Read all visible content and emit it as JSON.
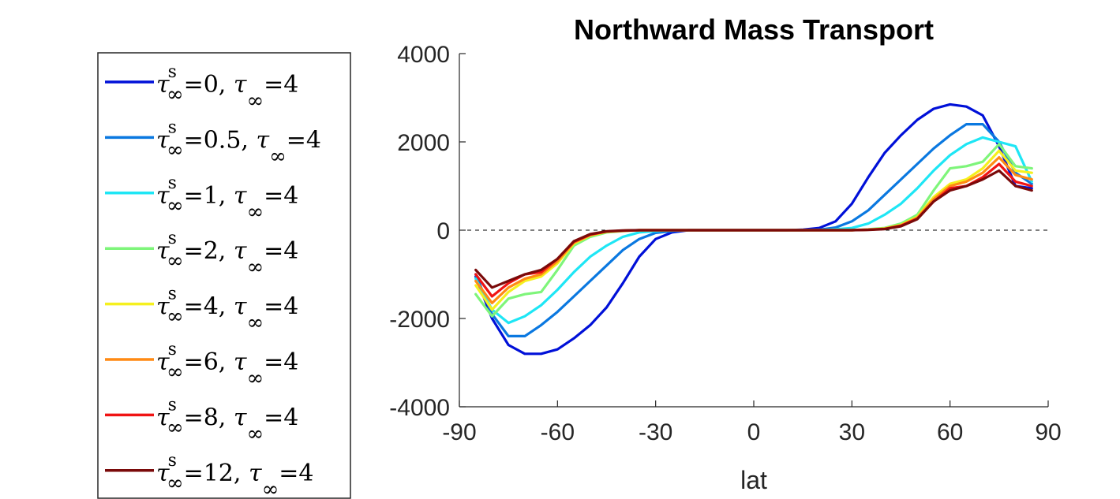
{
  "chart_data": {
    "type": "line",
    "title": "Northward Mass Transport",
    "xlabel": "lat",
    "ylabel": "",
    "xlim": [
      -90,
      90
    ],
    "ylim": [
      -4000,
      4000
    ],
    "xticks": [
      "-90",
      "-60",
      "-30",
      "0",
      "30",
      "60",
      "90"
    ],
    "yticks": [
      "4000",
      "2000",
      "0",
      "-2000",
      "-4000"
    ],
    "grid": false,
    "zero_line": true,
    "legend_position": "outside-left",
    "x": [
      -85,
      -80,
      -75,
      -70,
      -65,
      -60,
      -55,
      -50,
      -45,
      -40,
      -35,
      -30,
      -25,
      -20,
      -15,
      -10,
      -5,
      0,
      5,
      10,
      15,
      20,
      25,
      30,
      35,
      40,
      45,
      50,
      55,
      60,
      65,
      70,
      75,
      80,
      85
    ],
    "series": [
      {
        "color": "#0010d8",
        "legend": {
          "s_sym": "τ",
          "s_sup": "s",
          "s_sub": "∞",
          "s_val": "=0, ",
          "t_sym": "τ",
          "t_sub": "∞",
          "t_val": "=4"
        },
        "values": [
          -1050,
          -2000,
          -2600,
          -2800,
          -2800,
          -2700,
          -2450,
          -2150,
          -1750,
          -1200,
          -600,
          -200,
          -50,
          0,
          0,
          0,
          0,
          0,
          0,
          0,
          10,
          50,
          200,
          600,
          1200,
          1750,
          2150,
          2500,
          2750,
          2850,
          2800,
          2600,
          1900,
          1000,
          950
        ]
      },
      {
        "color": "#0a78e0",
        "legend": {
          "s_sym": "τ",
          "s_sup": "s",
          "s_sub": "∞",
          "s_val": "=0.5, ",
          "t_sym": "τ",
          "t_sub": "∞",
          "t_val": "=4"
        },
        "values": [
          -1000,
          -1900,
          -2400,
          -2400,
          -2150,
          -1850,
          -1500,
          -1150,
          -800,
          -450,
          -200,
          -60,
          -20,
          0,
          0,
          0,
          0,
          0,
          0,
          0,
          0,
          10,
          60,
          200,
          450,
          800,
          1150,
          1500,
          1850,
          2150,
          2400,
          2400,
          2000,
          1300,
          1050
        ]
      },
      {
        "color": "#1ee6f5",
        "legend": {
          "s_sym": "τ",
          "s_sup": "s",
          "s_sub": "∞",
          "s_val": "=1, ",
          "t_sym": "τ",
          "t_sub": "∞",
          "t_val": "=4"
        },
        "values": [
          -1100,
          -1800,
          -2100,
          -1950,
          -1700,
          -1350,
          -950,
          -600,
          -350,
          -150,
          -50,
          -20,
          0,
          0,
          0,
          0,
          0,
          0,
          0,
          0,
          0,
          0,
          20,
          50,
          150,
          350,
          600,
          950,
          1350,
          1700,
          1950,
          2100,
          2000,
          1900,
          1100
        ]
      },
      {
        "color": "#7ef57a",
        "legend": {
          "s_sym": "τ",
          "s_sup": "s",
          "s_sub": "∞",
          "s_val": "=2, ",
          "t_sym": "τ",
          "t_sub": "∞",
          "t_val": "=4"
        },
        "values": [
          -1450,
          -1950,
          -1550,
          -1450,
          -1400,
          -900,
          -350,
          -150,
          -50,
          -20,
          0,
          0,
          0,
          0,
          0,
          0,
          0,
          0,
          0,
          0,
          0,
          0,
          0,
          0,
          20,
          50,
          150,
          350,
          900,
          1400,
          1450,
          1550,
          1950,
          1450,
          1400
        ]
      },
      {
        "color": "#f5f01e",
        "legend": {
          "s_sym": "τ",
          "s_sup": "s",
          "s_sub": "∞",
          "s_val": "=4, ",
          "t_sym": "τ",
          "t_sub": "∞",
          "t_val": "=4"
        },
        "values": [
          -1250,
          -1800,
          -1400,
          -1150,
          -1050,
          -750,
          -300,
          -120,
          -40,
          -10,
          0,
          0,
          0,
          0,
          0,
          0,
          0,
          0,
          0,
          0,
          0,
          0,
          0,
          0,
          10,
          40,
          120,
          300,
          750,
          1050,
          1150,
          1400,
          1800,
          1350,
          1300
        ]
      },
      {
        "color": "#ff8a14",
        "legend": {
          "s_sym": "τ",
          "s_sup": "s",
          "s_sub": "∞",
          "s_val": "=6, ",
          "t_sym": "τ",
          "t_sub": "∞",
          "t_val": "=4"
        },
        "values": [
          -1150,
          -1650,
          -1300,
          -1100,
          -1000,
          -700,
          -280,
          -110,
          -30,
          -10,
          0,
          0,
          0,
          0,
          0,
          0,
          0,
          0,
          0,
          0,
          0,
          0,
          0,
          0,
          10,
          30,
          110,
          280,
          700,
          1000,
          1100,
          1300,
          1650,
          1250,
          1150
        ]
      },
      {
        "color": "#f01414",
        "legend": {
          "s_sym": "τ",
          "s_sup": "s",
          "s_sub": "∞",
          "s_val": "=8, ",
          "t_sym": "τ",
          "t_sub": "∞",
          "t_val": "=4"
        },
        "values": [
          -1000,
          -1500,
          -1200,
          -1000,
          -950,
          -650,
          -260,
          -100,
          -30,
          -10,
          0,
          0,
          0,
          0,
          0,
          0,
          0,
          0,
          0,
          0,
          0,
          0,
          0,
          0,
          10,
          30,
          100,
          260,
          650,
          950,
          1000,
          1200,
          1500,
          1100,
          1000
        ]
      },
      {
        "color": "#7a0a0a",
        "legend": {
          "s_sym": "τ",
          "s_sup": "s",
          "s_sub": "∞",
          "s_val": "=12, ",
          "t_sym": "τ",
          "t_sub": "∞",
          "t_val": "=4"
        },
        "values": [
          -900,
          -1300,
          -1150,
          -1000,
          -900,
          -650,
          -250,
          -90,
          -25,
          -5,
          0,
          0,
          0,
          0,
          0,
          0,
          0,
          0,
          0,
          0,
          0,
          0,
          0,
          0,
          5,
          25,
          90,
          250,
          650,
          900,
          1000,
          1150,
          1350,
          1000,
          900
        ]
      }
    ]
  }
}
